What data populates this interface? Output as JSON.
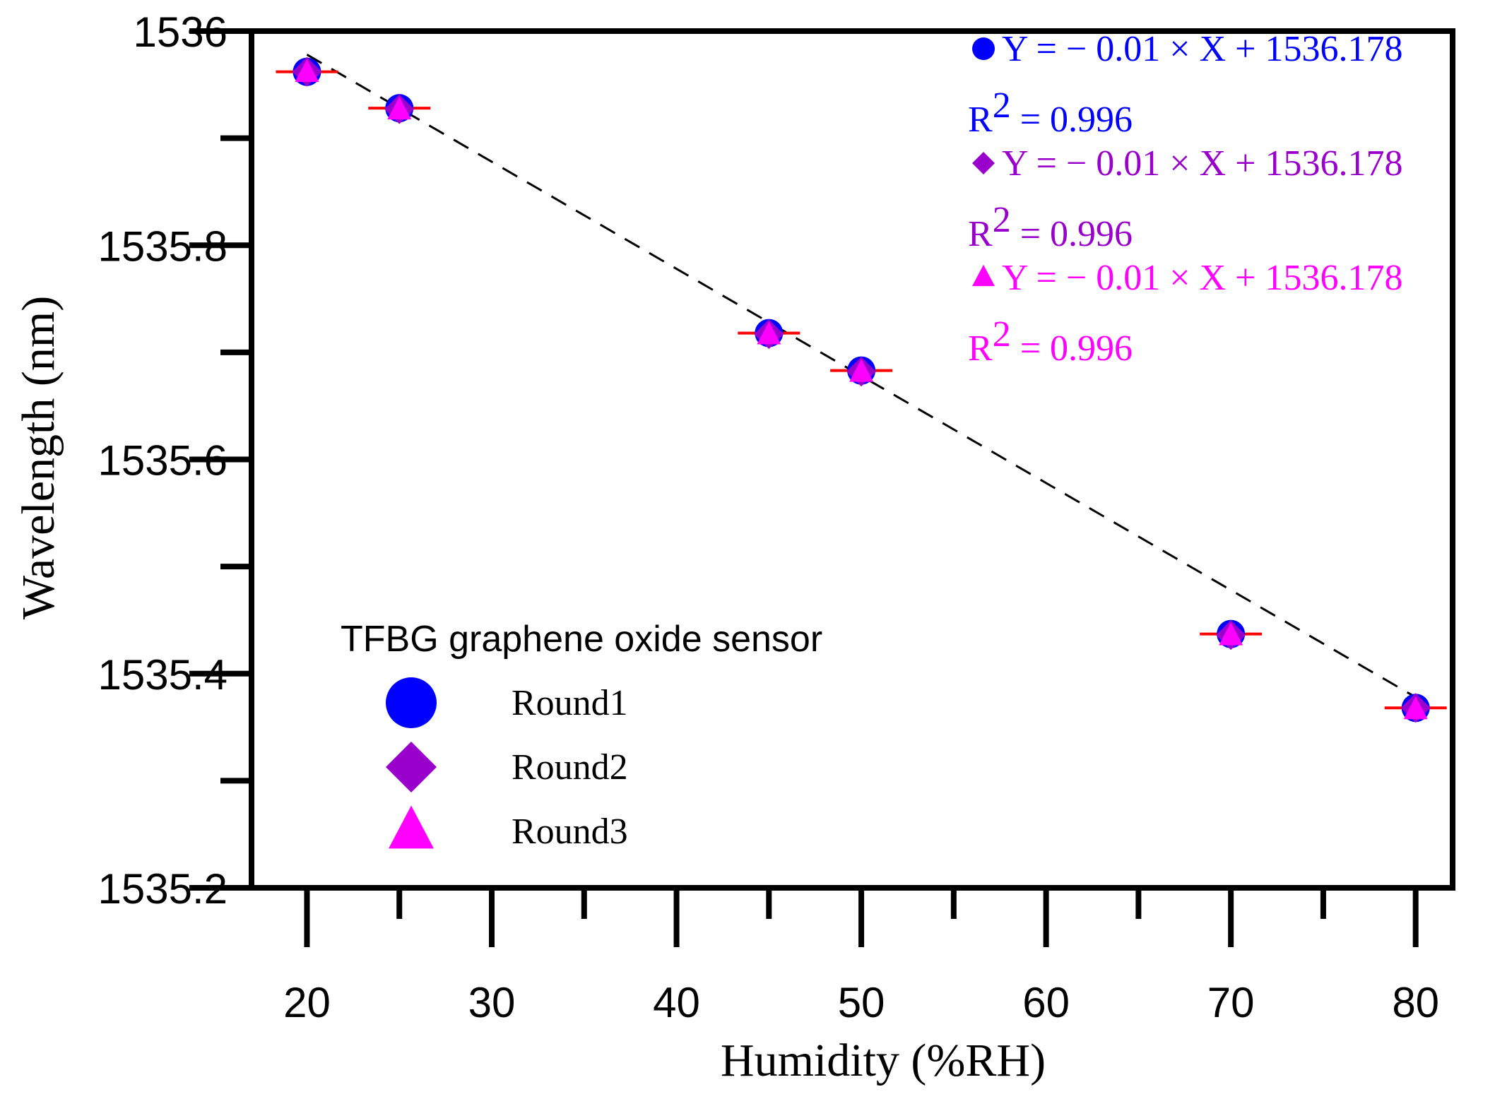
{
  "chart_data": {
    "type": "scatter",
    "title": "",
    "xlabel": "Humidity (%RH)",
    "ylabel": "Wavelength (nm)",
    "xlim": [
      17,
      82
    ],
    "ylim": [
      1535.2,
      1536.0
    ],
    "x_ticks": [
      20,
      30,
      40,
      50,
      60,
      70,
      80
    ],
    "x_tick_labels": [
      "20",
      "30",
      "40",
      "50",
      "60",
      "70",
      "80"
    ],
    "x_minor_ticks": [
      25,
      35,
      45,
      55,
      65,
      75
    ],
    "y_ticks": [
      1535.2,
      1535.4,
      1535.6,
      1535.8,
      1536.0
    ],
    "y_tick_labels": [
      "1535.2",
      "1535.4",
      "1535.6",
      "1535.8",
      "1536"
    ],
    "y_minor_ticks": [
      1535.3,
      1535.5,
      1535.7,
      1535.9
    ],
    "grid": false,
    "legend": {
      "title": "TFBG graphene oxide sensor",
      "placement": "lower-left"
    },
    "series": [
      {
        "name": "Round1",
        "marker": "circle",
        "color": "#0000ff",
        "x": [
          20,
          25,
          45,
          50,
          70,
          80
        ],
        "y": [
          1535.962,
          1535.928,
          1535.718,
          1535.683,
          1535.437,
          1535.368
        ]
      },
      {
        "name": "Round2",
        "marker": "diamond",
        "color": "#9900cc",
        "x": [
          20,
          25,
          45,
          50,
          70,
          80
        ],
        "y": [
          1535.962,
          1535.927,
          1535.717,
          1535.682,
          1535.436,
          1535.368
        ]
      },
      {
        "name": "Round3",
        "marker": "triangle",
        "color": "#ff00ff",
        "x": [
          20,
          25,
          45,
          50,
          70,
          80
        ],
        "y": [
          1535.961,
          1535.926,
          1535.716,
          1535.681,
          1535.435,
          1535.366
        ]
      }
    ],
    "error_bar_color": "#ff0000",
    "fit_line": {
      "slope": -0.01,
      "intercept": 1536.178,
      "x_range": [
        20,
        80
      ],
      "style": "dashed",
      "color": "#000000"
    },
    "annotations": [
      {
        "marker": "circle",
        "color": "#0000ff",
        "equation": "Y =  − 0.01 × X + 1536.178",
        "r2_base": "R",
        "r2_exp": "2",
        "r2_value": " = 0.996"
      },
      {
        "marker": "diamond",
        "color": "#9900cc",
        "equation": "Y =  − 0.01 × X + 1536.178",
        "r2_base": "R",
        "r2_exp": "2",
        "r2_value": " = 0.996"
      },
      {
        "marker": "triangle",
        "color": "#ff00ff",
        "equation": "Y =  − 0.01 × X + 1536.178",
        "r2_base": "R",
        "r2_exp": "2",
        "r2_value": " = 0.996"
      }
    ]
  }
}
